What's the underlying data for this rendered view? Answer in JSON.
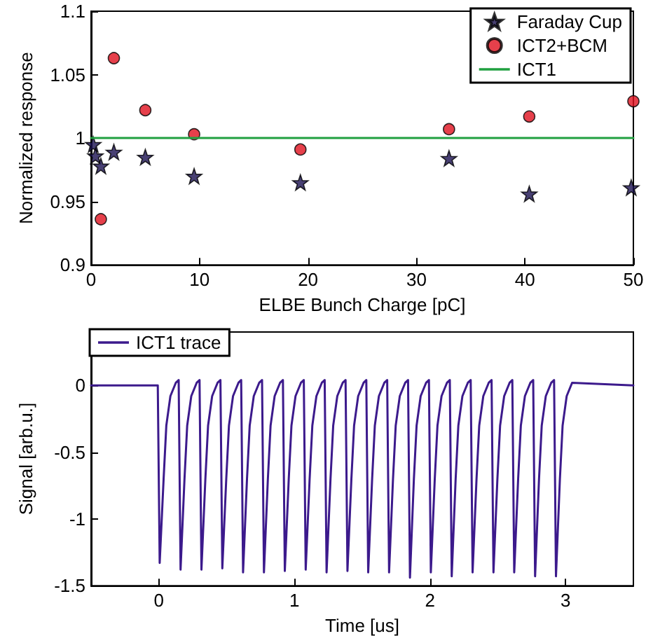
{
  "chart_data": [
    {
      "type": "scatter",
      "xlabel": "ELBE Bunch Charge [pC]",
      "ylabel": "Normalized response",
      "xlim": [
        0,
        50
      ],
      "xticks": [
        0,
        10,
        20,
        30,
        40,
        50
      ],
      "ylim": [
        0.9,
        1.1
      ],
      "yticks": [
        0.9,
        0.95,
        1,
        1.05,
        1.1
      ],
      "grid": false,
      "legend": "top right",
      "series": [
        {
          "name": "Faraday Cup",
          "color": "#1a1050",
          "marker": "star",
          "x": [
            0.2,
            0.4,
            0.9,
            2.1,
            5.0,
            9.5,
            19.3,
            33.0,
            40.4,
            49.8
          ],
          "values": [
            0.995,
            0.986,
            0.978,
            0.989,
            0.985,
            0.97,
            0.965,
            0.984,
            0.956,
            0.961
          ]
        },
        {
          "name": "ICT2+BCM",
          "color": "#e0101e",
          "marker": "circle",
          "x": [
            0.9,
            2.1,
            5.0,
            9.5,
            19.3,
            33.0,
            40.4,
            50
          ],
          "values": [
            0.936,
            1.063,
            1.022,
            1.003,
            0.991,
            1.007,
            1.017,
            1.029
          ]
        },
        {
          "name": "ICT1",
          "type": "line",
          "color": "#20a040",
          "marker": "none",
          "line_style": "solid",
          "x": [
            0,
            50
          ],
          "values": [
            1,
            1
          ]
        }
      ]
    },
    {
      "type": "line",
      "xlabel": "Time [us]",
      "ylabel": "Signal [arb.u.]",
      "xlim": [
        -0.5,
        3.5
      ],
      "xticks": [
        0,
        1,
        2,
        3
      ],
      "ylim": [
        -1.5,
        0.4
      ],
      "yticks": [
        -1.5,
        -1,
        -0.5,
        0
      ],
      "grid": false,
      "legend": "top left",
      "marker": "none",
      "line_style": "solid",
      "series": [
        {
          "name": "ICT1 trace",
          "color": "#3c1a8c",
          "x": [
            -0.5,
            -0.008,
            0.006,
            0.035,
            0.055,
            0.085,
            0.125,
            0.146,
            0.16,
            0.189,
            0.209,
            0.239,
            0.279,
            0.3,
            0.314,
            0.343,
            0.363,
            0.393,
            0.433,
            0.454,
            0.468,
            0.497,
            0.517,
            0.547,
            0.587,
            0.607,
            0.621,
            0.65,
            0.67,
            0.7,
            0.74,
            0.761,
            0.775,
            0.804,
            0.824,
            0.854,
            0.894,
            0.915,
            0.929,
            0.958,
            0.978,
            1.008,
            1.048,
            1.069,
            1.083,
            1.112,
            1.132,
            1.162,
            1.202,
            1.223,
            1.237,
            1.266,
            1.286,
            1.316,
            1.356,
            1.377,
            1.391,
            1.42,
            1.44,
            1.47,
            1.51,
            1.53,
            1.544,
            1.573,
            1.593,
            1.623,
            1.663,
            1.684,
            1.698,
            1.727,
            1.747,
            1.777,
            1.817,
            1.838,
            1.852,
            1.881,
            1.901,
            1.931,
            1.971,
            1.992,
            2.006,
            2.035,
            2.055,
            2.085,
            2.125,
            2.146,
            2.16,
            2.189,
            2.209,
            2.239,
            2.279,
            2.3,
            2.314,
            2.343,
            2.363,
            2.393,
            2.433,
            2.454,
            2.468,
            2.497,
            2.517,
            2.547,
            2.587,
            2.607,
            2.621,
            2.65,
            2.67,
            2.7,
            2.74,
            2.761,
            2.775,
            2.804,
            2.824,
            2.854,
            2.894,
            2.915,
            2.929,
            2.958,
            2.978,
            3.008,
            3.048,
            3.5
          ],
          "values": [
            0,
            0,
            -1.33,
            -0.7,
            -0.3,
            -0.08,
            0.02,
            0.04,
            -1.38,
            -0.7,
            -0.3,
            -0.08,
            0.02,
            0.04,
            -1.38,
            -0.7,
            -0.3,
            -0.08,
            0.02,
            0.04,
            -1.37,
            -0.7,
            -0.3,
            -0.08,
            0.02,
            0.04,
            -1.4,
            -0.7,
            -0.3,
            -0.08,
            0.02,
            0.04,
            -1.4,
            -0.7,
            -0.3,
            -0.08,
            0.02,
            0.04,
            -1.39,
            -0.7,
            -0.3,
            -0.08,
            0.02,
            0.04,
            -1.38,
            -0.7,
            -0.3,
            -0.08,
            0.02,
            0.04,
            -1.4,
            -0.7,
            -0.3,
            -0.08,
            0.02,
            0.04,
            -1.39,
            -0.7,
            -0.3,
            -0.08,
            0.02,
            0.04,
            -1.4,
            -0.7,
            -0.3,
            -0.08,
            0.02,
            0.04,
            -1.4,
            -0.7,
            -0.3,
            -0.08,
            0.02,
            0.04,
            -1.44,
            -0.7,
            -0.3,
            -0.08,
            0.02,
            0.04,
            -1.4,
            -0.7,
            -0.3,
            -0.08,
            0.02,
            0.04,
            -1.43,
            -0.7,
            -0.3,
            -0.08,
            0.02,
            0.04,
            -1.4,
            -0.7,
            -0.3,
            -0.08,
            0.02,
            0.04,
            -1.4,
            -0.7,
            -0.3,
            -0.08,
            0.02,
            0.04,
            -1.4,
            -0.7,
            -0.3,
            -0.08,
            0.02,
            0.04,
            -1.43,
            -0.7,
            -0.3,
            -0.08,
            0.02,
            0.04,
            -1.43,
            -0.7,
            -0.3,
            -0.08,
            0.02,
            0
          ]
        }
      ]
    }
  ]
}
